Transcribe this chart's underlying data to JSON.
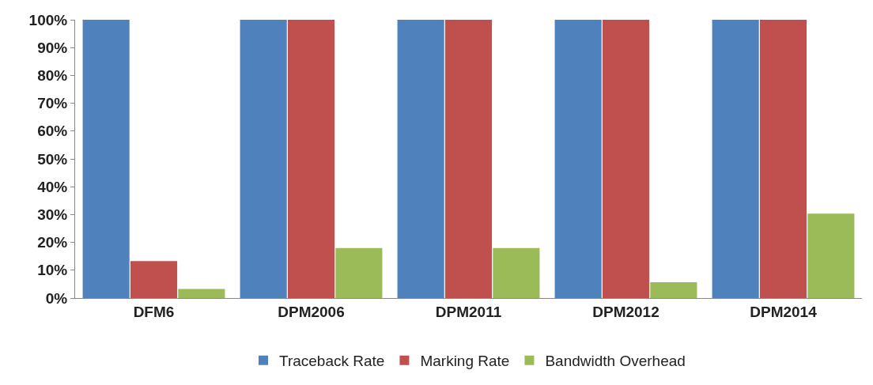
{
  "chart_data": {
    "type": "bar",
    "categories": [
      "DFM6",
      "DPM2006",
      "DPM2011",
      "DPM2012",
      "DPM2014"
    ],
    "series": [
      {
        "name": "Traceback Rate",
        "color": "#4f81bd",
        "values": [
          100,
          100,
          100,
          100,
          100
        ]
      },
      {
        "name": "Marking Rate",
        "color": "#c0504d",
        "values": [
          13.3,
          100,
          100,
          100,
          100
        ]
      },
      {
        "name": "Bandwidth Overhead",
        "color": "#9bbb59",
        "values": [
          3.3,
          18,
          18,
          5.7,
          30.3
        ]
      }
    ],
    "ylim": [
      0,
      100
    ],
    "yticks": [
      {
        "value": 0,
        "label": "0%"
      },
      {
        "value": 10,
        "label": "10%"
      },
      {
        "value": 20,
        "label": "20%"
      },
      {
        "value": 30,
        "label": "30%"
      },
      {
        "value": 40,
        "label": "40%"
      },
      {
        "value": 50,
        "label": "50%"
      },
      {
        "value": 60,
        "label": "60%"
      },
      {
        "value": 70,
        "label": "70%"
      },
      {
        "value": 80,
        "label": "80%"
      },
      {
        "value": 90,
        "label": "90%"
      },
      {
        "value": 100,
        "label": "100%"
      }
    ],
    "grid": false,
    "legend": "bottom"
  }
}
